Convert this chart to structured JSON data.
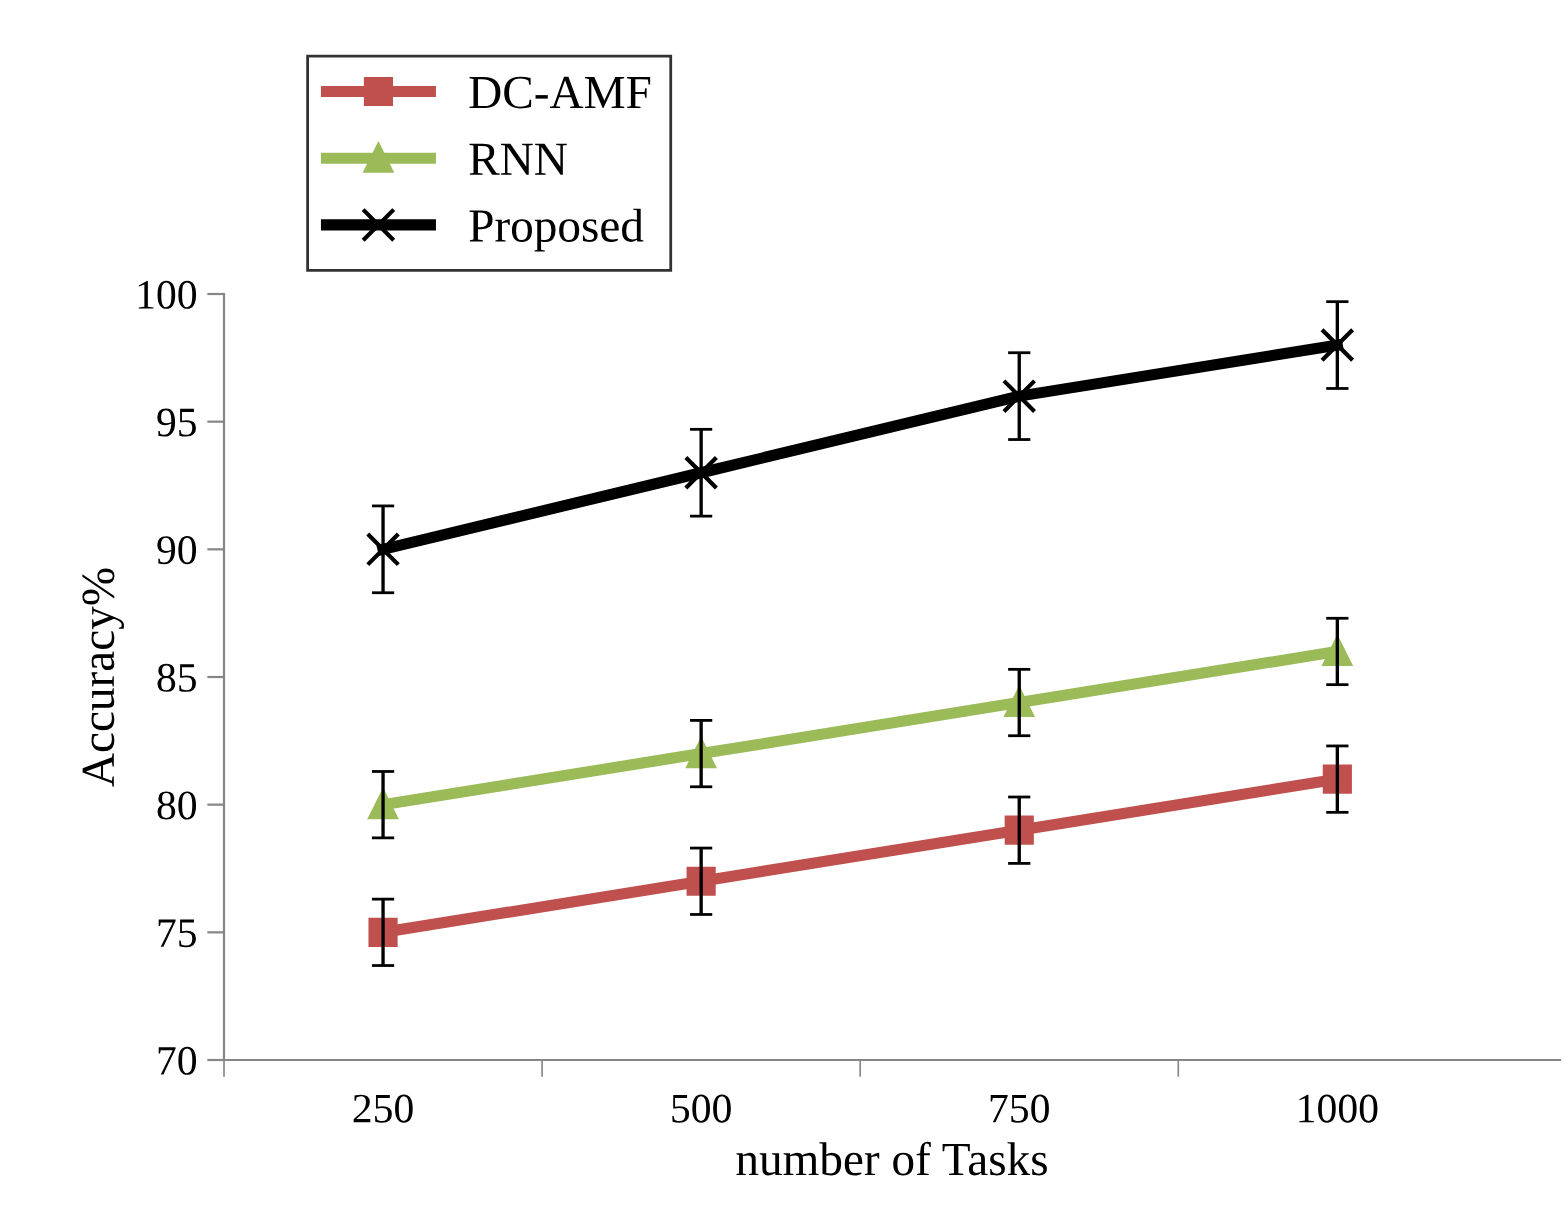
{
  "chart_data": {
    "type": "line",
    "xlabel": "number of Tasks",
    "ylabel": "Accuracy%",
    "categories": [
      "250",
      "500",
      "750",
      "1000"
    ],
    "series": [
      {
        "name": "DC-AMF",
        "color": "#c0504d",
        "marker": "square",
        "values": [
          75,
          77,
          79,
          81
        ],
        "errors": [
          1.3,
          1.3,
          1.3,
          1.3
        ]
      },
      {
        "name": "RNN",
        "color": "#9bbb59",
        "marker": "triangle",
        "values": [
          80,
          82,
          84,
          86
        ],
        "errors": [
          1.3,
          1.3,
          1.3,
          1.3
        ]
      },
      {
        "name": "Proposed",
        "color": "#000000",
        "marker": "cross",
        "values": [
          90,
          93,
          96,
          98
        ],
        "errors": [
          1.7,
          1.7,
          1.7,
          1.7
        ]
      }
    ],
    "ylim": [
      70,
      100
    ],
    "yticks": [
      70,
      75,
      80,
      85,
      90,
      95,
      100
    ],
    "grid": false,
    "legend": "top left",
    "line_style": "solid"
  }
}
